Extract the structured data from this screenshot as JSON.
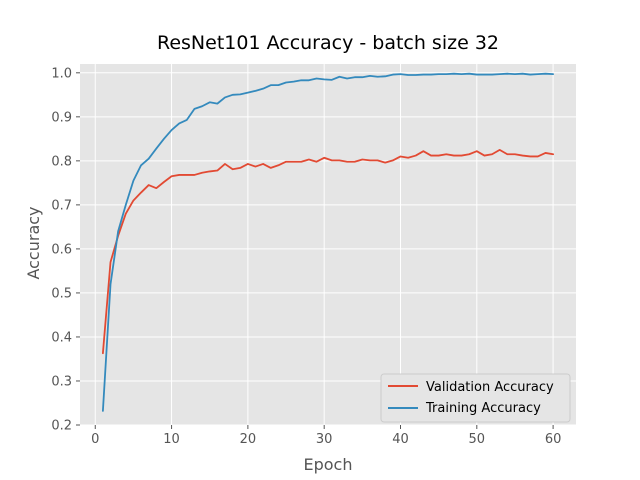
{
  "chart_data": {
    "type": "line",
    "title": "ResNet101 Accuracy - batch size 32",
    "xlabel": "Epoch",
    "ylabel": "Accuracy",
    "xlim": [
      -2,
      63
    ],
    "ylim": [
      0.2,
      1.02
    ],
    "xticks": [
      0,
      10,
      20,
      30,
      40,
      50,
      60
    ],
    "yticks": [
      0.2,
      0.3,
      0.4,
      0.5,
      0.6,
      0.7,
      0.8,
      0.9,
      1.0
    ],
    "xtick_labels": [
      "0",
      "10",
      "20",
      "30",
      "40",
      "50",
      "60"
    ],
    "ytick_labels": [
      "0.2",
      "0.3",
      "0.4",
      "0.5",
      "0.6",
      "0.7",
      "0.8",
      "0.9",
      "1.0"
    ],
    "grid": true,
    "legend_position": "bottom-right",
    "x": [
      1,
      2,
      3,
      4,
      5,
      6,
      7,
      8,
      9,
      10,
      11,
      12,
      13,
      14,
      15,
      16,
      17,
      18,
      19,
      20,
      21,
      22,
      23,
      24,
      25,
      26,
      27,
      28,
      29,
      30,
      31,
      32,
      33,
      34,
      35,
      36,
      37,
      38,
      39,
      40,
      41,
      42,
      43,
      44,
      45,
      46,
      47,
      48,
      49,
      50,
      51,
      52,
      53,
      54,
      55,
      56,
      57,
      58,
      59,
      60
    ],
    "series": [
      {
        "name": "Validation Accuracy",
        "color": "#E24A33",
        "values": [
          0.363,
          0.57,
          0.63,
          0.68,
          0.71,
          0.728,
          0.745,
          0.738,
          0.752,
          0.765,
          0.768,
          0.768,
          0.768,
          0.773,
          0.776,
          0.778,
          0.793,
          0.781,
          0.784,
          0.793,
          0.787,
          0.793,
          0.784,
          0.79,
          0.798,
          0.798,
          0.798,
          0.803,
          0.798,
          0.807,
          0.801,
          0.801,
          0.798,
          0.798,
          0.803,
          0.801,
          0.801,
          0.796,
          0.801,
          0.81,
          0.807,
          0.812,
          0.822,
          0.812,
          0.812,
          0.815,
          0.812,
          0.812,
          0.815,
          0.822,
          0.812,
          0.815,
          0.825,
          0.815,
          0.815,
          0.812,
          0.81,
          0.81,
          0.818,
          0.815
        ]
      },
      {
        "name": "Training Accuracy",
        "color": "#348ABD",
        "values": [
          0.232,
          0.52,
          0.64,
          0.7,
          0.755,
          0.79,
          0.805,
          0.828,
          0.85,
          0.87,
          0.885,
          0.893,
          0.918,
          0.924,
          0.933,
          0.93,
          0.944,
          0.95,
          0.951,
          0.955,
          0.959,
          0.964,
          0.972,
          0.972,
          0.978,
          0.98,
          0.983,
          0.983,
          0.987,
          0.985,
          0.984,
          0.991,
          0.987,
          0.99,
          0.99,
          0.993,
          0.991,
          0.992,
          0.996,
          0.997,
          0.995,
          0.995,
          0.996,
          0.996,
          0.997,
          0.997,
          0.998,
          0.997,
          0.998,
          0.996,
          0.996,
          0.996,
          0.997,
          0.998,
          0.997,
          0.998,
          0.996,
          0.997,
          0.998,
          0.997
        ]
      }
    ]
  }
}
